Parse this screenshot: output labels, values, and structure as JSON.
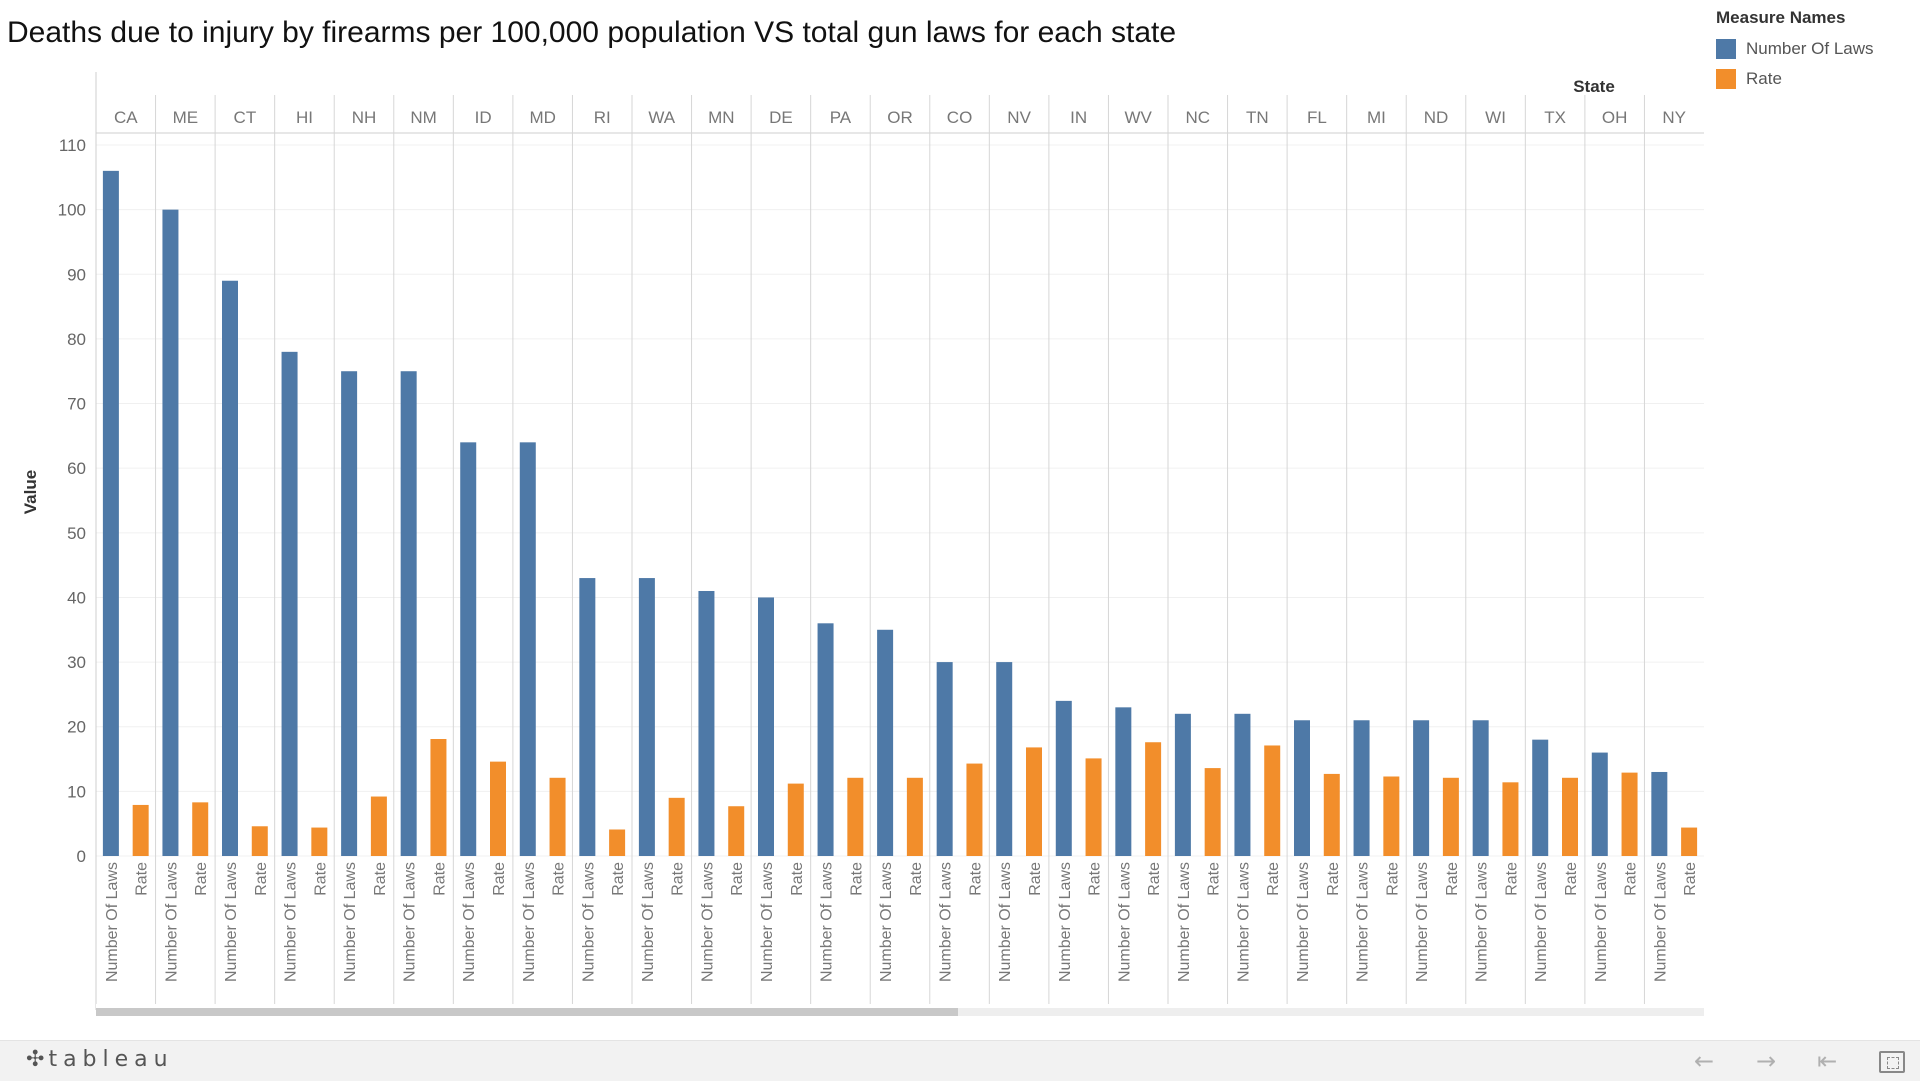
{
  "title": "Deaths due to injury by firearms per 100,000 population  VS total gun laws for each state",
  "legend": {
    "title": "Measure Names",
    "items": [
      {
        "label": "Number Of Laws",
        "color": "#4e79a7"
      },
      {
        "label": "Rate",
        "color": "#f28e2b"
      }
    ]
  },
  "footer": {
    "logo": "tableau",
    "buttons": [
      "back-arrow-icon",
      "forward-arrow-icon",
      "first-page-icon",
      "fullscreen-icon"
    ]
  },
  "chart_data": {
    "type": "bar",
    "layout": "grouped",
    "column_header": "State",
    "ylabel": "Value",
    "xlabel": "",
    "ylim": [
      0,
      110
    ],
    "yticks": [
      0,
      10,
      20,
      30,
      40,
      50,
      60,
      70,
      80,
      90,
      100,
      110
    ],
    "grid": true,
    "legend_position": "top-right",
    "measures": [
      "Number Of Laws",
      "Rate"
    ],
    "categories": [
      "CA",
      "ME",
      "CT",
      "HI",
      "NH",
      "NM",
      "ID",
      "MD",
      "RI",
      "WA",
      "MN",
      "DE",
      "PA",
      "OR",
      "CO",
      "NV",
      "IN",
      "WV",
      "NC",
      "TN",
      "FL",
      "MI",
      "ND",
      "WI",
      "TX",
      "OH",
      "NY"
    ],
    "series": [
      {
        "name": "Number Of Laws",
        "color": "#4e79a7",
        "values": [
          106,
          100,
          89,
          78,
          75,
          75,
          64,
          64,
          43,
          43,
          41,
          40,
          36,
          35,
          30,
          30,
          24,
          23,
          22,
          22,
          21,
          21,
          21,
          21,
          18,
          16,
          13
        ]
      },
      {
        "name": "Rate",
        "color": "#f28e2b",
        "values": [
          7.9,
          8.3,
          4.6,
          4.4,
          9.2,
          18.1,
          14.6,
          12.1,
          4.1,
          9,
          7.7,
          11.2,
          12.1,
          12.1,
          14.3,
          16.8,
          15.1,
          17.6,
          13.6,
          17.1,
          12.7,
          12.3,
          12.1,
          11.4,
          12.1,
          12.9,
          4.4
        ]
      }
    ]
  }
}
